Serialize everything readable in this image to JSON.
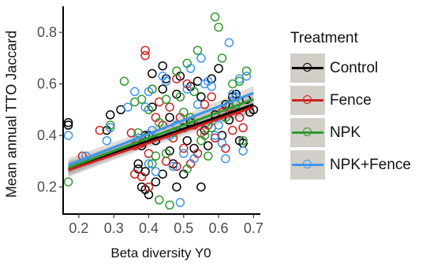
{
  "chart_data": {
    "type": "scatter",
    "xlabel": "Beta diversity Y0",
    "ylabel": "Mean annual TTO Jaccard",
    "xlim": [
      0.155,
      0.715
    ],
    "ylim": [
      0.095,
      0.895
    ],
    "x_ticks": [
      "0.2",
      "0.3",
      "0.4",
      "0.5",
      "0.6",
      "0.7"
    ],
    "y_ticks": [
      "0.2",
      "0.4",
      "0.6",
      "0.8"
    ],
    "legend_title": "Treatment",
    "legend_position": "right",
    "grid": false,
    "series": [
      {
        "name": "Control",
        "color": "#000000",
        "fit": [
          [
            0.17,
            0.27
          ],
          [
            0.7,
            0.52
          ]
        ],
        "points": [
          [
            0.17,
            0.45
          ],
          [
            0.17,
            0.44
          ],
          [
            0.29,
            0.48
          ],
          [
            0.28,
            0.42
          ],
          [
            0.32,
            0.5
          ],
          [
            0.37,
            0.29
          ],
          [
            0.37,
            0.27
          ],
          [
            0.38,
            0.2
          ],
          [
            0.38,
            0.36
          ],
          [
            0.39,
            0.4
          ],
          [
            0.39,
            0.26
          ],
          [
            0.39,
            0.19
          ],
          [
            0.4,
            0.4
          ],
          [
            0.4,
            0.17
          ],
          [
            0.41,
            0.64
          ],
          [
            0.41,
            0.51
          ],
          [
            0.42,
            0.38
          ],
          [
            0.42,
            0.22
          ],
          [
            0.44,
            0.67
          ],
          [
            0.44,
            0.58
          ],
          [
            0.44,
            0.25
          ],
          [
            0.45,
            0.62
          ],
          [
            0.46,
            0.47
          ],
          [
            0.46,
            0.34
          ],
          [
            0.47,
            0.29
          ],
          [
            0.48,
            0.56
          ],
          [
            0.48,
            0.2
          ],
          [
            0.49,
            0.63
          ],
          [
            0.5,
            0.43
          ],
          [
            0.5,
            0.25
          ],
          [
            0.51,
            0.38
          ],
          [
            0.52,
            0.59
          ],
          [
            0.52,
            0.45
          ],
          [
            0.53,
            0.35
          ],
          [
            0.54,
            0.61
          ],
          [
            0.55,
            0.55
          ],
          [
            0.55,
            0.2
          ],
          [
            0.56,
            0.42
          ],
          [
            0.57,
            0.36
          ],
          [
            0.58,
            0.62
          ],
          [
            0.59,
            0.48
          ],
          [
            0.6,
            0.66
          ],
          [
            0.61,
            0.4
          ],
          [
            0.62,
            0.52
          ],
          [
            0.63,
            0.46
          ],
          [
            0.64,
            0.55
          ],
          [
            0.65,
            0.56
          ],
          [
            0.66,
            0.38
          ],
          [
            0.67,
            0.37
          ],
          [
            0.68,
            0.54
          ],
          [
            0.69,
            0.49
          ],
          [
            0.7,
            0.5
          ]
        ]
      },
      {
        "name": "Fence",
        "color": "#cc2222",
        "fit": [
          [
            0.17,
            0.265
          ],
          [
            0.7,
            0.51
          ]
        ],
        "points": [
          [
            0.21,
            0.32
          ],
          [
            0.26,
            0.42
          ],
          [
            0.35,
            0.41
          ],
          [
            0.36,
            0.36
          ],
          [
            0.36,
            0.25
          ],
          [
            0.38,
            0.37
          ],
          [
            0.38,
            0.24
          ],
          [
            0.39,
            0.73
          ],
          [
            0.39,
            0.71
          ],
          [
            0.4,
            0.33
          ],
          [
            0.4,
            0.2
          ],
          [
            0.41,
            0.58
          ],
          [
            0.42,
            0.47
          ],
          [
            0.43,
            0.53
          ],
          [
            0.44,
            0.44
          ],
          [
            0.45,
            0.3
          ],
          [
            0.46,
            0.51
          ],
          [
            0.47,
            0.39
          ],
          [
            0.48,
            0.62
          ],
          [
            0.48,
            0.28
          ],
          [
            0.49,
            0.47
          ],
          [
            0.5,
            0.35
          ],
          [
            0.51,
            0.6
          ],
          [
            0.52,
            0.29
          ],
          [
            0.53,
            0.44
          ],
          [
            0.54,
            0.33
          ],
          [
            0.55,
            0.41
          ],
          [
            0.56,
            0.52
          ],
          [
            0.57,
            0.44
          ],
          [
            0.58,
            0.55
          ],
          [
            0.59,
            0.39
          ],
          [
            0.61,
            0.49
          ],
          [
            0.62,
            0.35
          ],
          [
            0.63,
            0.51
          ],
          [
            0.64,
            0.42
          ],
          [
            0.66,
            0.47
          ],
          [
            0.67,
            0.43
          ]
        ]
      },
      {
        "name": "NPK",
        "color": "#2e9a2e",
        "fit": [
          [
            0.17,
            0.275
          ],
          [
            0.7,
            0.54
          ]
        ],
        "points": [
          [
            0.17,
            0.22
          ],
          [
            0.29,
            0.44
          ],
          [
            0.33,
            0.61
          ],
          [
            0.36,
            0.53
          ],
          [
            0.37,
            0.41
          ],
          [
            0.38,
            0.54
          ],
          [
            0.39,
            0.39
          ],
          [
            0.4,
            0.5
          ],
          [
            0.41,
            0.58
          ],
          [
            0.41,
            0.29
          ],
          [
            0.42,
            0.32
          ],
          [
            0.43,
            0.15
          ],
          [
            0.43,
            0.45
          ],
          [
            0.45,
            0.54
          ],
          [
            0.45,
            0.33
          ],
          [
            0.46,
            0.13
          ],
          [
            0.47,
            0.41
          ],
          [
            0.48,
            0.65
          ],
          [
            0.49,
            0.55
          ],
          [
            0.5,
            0.49
          ],
          [
            0.51,
            0.27
          ],
          [
            0.51,
            0.68
          ],
          [
            0.52,
            0.47
          ],
          [
            0.53,
            0.57
          ],
          [
            0.54,
            0.73
          ],
          [
            0.55,
            0.38
          ],
          [
            0.56,
            0.4
          ],
          [
            0.57,
            0.32
          ],
          [
            0.58,
            0.43
          ],
          [
            0.59,
            0.86
          ],
          [
            0.6,
            0.82
          ],
          [
            0.61,
            0.7
          ],
          [
            0.62,
            0.47
          ],
          [
            0.63,
            0.52
          ],
          [
            0.64,
            0.6
          ],
          [
            0.65,
            0.52
          ],
          [
            0.66,
            0.61
          ],
          [
            0.67,
            0.38
          ],
          [
            0.68,
            0.65
          ]
        ]
      },
      {
        "name": "NPK+Fence",
        "color": "#3f95ea",
        "fit": [
          [
            0.17,
            0.285
          ],
          [
            0.7,
            0.565
          ]
        ],
        "points": [
          [
            0.17,
            0.4
          ],
          [
            0.22,
            0.32
          ],
          [
            0.28,
            0.38
          ],
          [
            0.29,
            0.43
          ],
          [
            0.34,
            0.51
          ],
          [
            0.36,
            0.57
          ],
          [
            0.37,
            0.39
          ],
          [
            0.39,
            0.51
          ],
          [
            0.4,
            0.57
          ],
          [
            0.4,
            0.29
          ],
          [
            0.41,
            0.42
          ],
          [
            0.42,
            0.26
          ],
          [
            0.44,
            0.63
          ],
          [
            0.45,
            0.61
          ],
          [
            0.46,
            0.4
          ],
          [
            0.47,
            0.28
          ],
          [
            0.48,
            0.44
          ],
          [
            0.49,
            0.14
          ],
          [
            0.5,
            0.33
          ],
          [
            0.51,
            0.58
          ],
          [
            0.52,
            0.66
          ],
          [
            0.53,
            0.31
          ],
          [
            0.54,
            0.52
          ],
          [
            0.55,
            0.7
          ],
          [
            0.56,
            0.6
          ],
          [
            0.57,
            0.61
          ],
          [
            0.58,
            0.59
          ],
          [
            0.59,
            0.4
          ],
          [
            0.6,
            0.44
          ],
          [
            0.61,
            0.37
          ],
          [
            0.62,
            0.31
          ],
          [
            0.63,
            0.76
          ],
          [
            0.64,
            0.56
          ],
          [
            0.65,
            0.55
          ],
          [
            0.66,
            0.62
          ],
          [
            0.67,
            0.34
          ],
          [
            0.68,
            0.63
          ]
        ]
      }
    ]
  }
}
